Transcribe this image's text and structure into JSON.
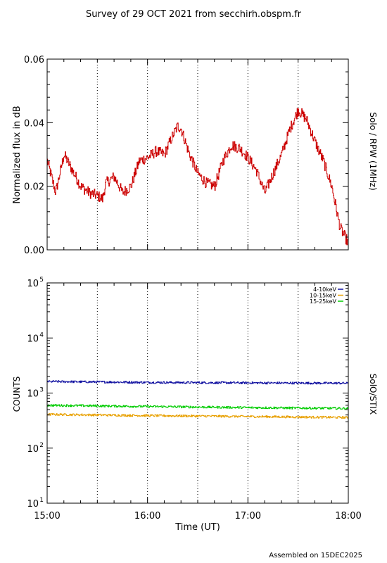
{
  "title": "Survey of 29 OCT 2021 from secchirh.obspm.fr",
  "footer": "Assembled on 15DEC2025",
  "chart_data": [
    {
      "type": "line",
      "ylabel": "Normalized flux in dB",
      "right_label": "Solo / RPW (1MHz)",
      "xlim": [
        "15:00",
        "18:00"
      ],
      "ylim": [
        0.0,
        0.06
      ],
      "yticks": [
        "0.00",
        "0.02",
        "0.04",
        "0.06"
      ],
      "grid_x": [
        "15:30",
        "16:00",
        "16:30",
        "17:00",
        "17:30"
      ],
      "series": [
        {
          "color": "#cc0000",
          "x": [
            "15:00",
            "15:05",
            "15:10",
            "15:15",
            "15:20",
            "15:25",
            "15:30",
            "15:33",
            "15:35",
            "15:40",
            "15:45",
            "15:50",
            "15:55",
            "16:00",
            "16:05",
            "16:10",
            "16:15",
            "16:18",
            "16:20",
            "16:25",
            "16:30",
            "16:35",
            "16:40",
            "16:45",
            "16:50",
            "16:55",
            "17:00",
            "17:05",
            "17:10",
            "17:15",
            "17:20",
            "17:25",
            "17:30",
            "17:35",
            "17:40",
            "17:45",
            "17:50",
            "17:55",
            "18:00"
          ],
          "values": [
            0.028,
            0.018,
            0.03,
            0.025,
            0.02,
            0.018,
            0.017,
            0.016,
            0.021,
            0.023,
            0.018,
            0.02,
            0.028,
            0.029,
            0.031,
            0.03,
            0.036,
            0.039,
            0.038,
            0.03,
            0.024,
            0.021,
            0.02,
            0.028,
            0.033,
            0.032,
            0.029,
            0.025,
            0.018,
            0.024,
            0.03,
            0.038,
            0.044,
            0.041,
            0.034,
            0.028,
            0.02,
            0.007,
            0.002
          ]
        }
      ]
    },
    {
      "type": "line",
      "ylabel": "COUNTS",
      "right_label": "SolO/STIX",
      "xlabel": "Time (UT)",
      "xlim": [
        "15:00",
        "18:00"
      ],
      "xticks": [
        "15:00",
        "16:00",
        "17:00",
        "18:00"
      ],
      "y_scale": "log",
      "ylim": [
        10,
        100000
      ],
      "yticks": [
        {
          "base": "10",
          "exp": "1",
          "value": 10
        },
        {
          "base": "10",
          "exp": "2",
          "value": 100
        },
        {
          "base": "10",
          "exp": "3",
          "value": 1000
        },
        {
          "base": "10",
          "exp": "4",
          "value": 10000
        },
        {
          "base": "10",
          "exp": "5",
          "value": 100000
        }
      ],
      "grid_x": [
        "15:30",
        "16:00",
        "16:30",
        "17:00",
        "17:30"
      ],
      "legend_position": "top-right",
      "series": [
        {
          "name": "4-10keV",
          "color": "#1010a0",
          "x": [
            "15:00",
            "16:00",
            "17:00",
            "18:00"
          ],
          "values": [
            1620,
            1560,
            1530,
            1510
          ]
        },
        {
          "name": "10-15keV",
          "color": "#e8a000",
          "x": [
            "15:00",
            "16:00",
            "17:00",
            "18:00"
          ],
          "values": [
            410,
            390,
            375,
            360
          ]
        },
        {
          "name": "15-25keV",
          "color": "#00cc00",
          "x": [
            "15:00",
            "16:00",
            "17:00",
            "18:00"
          ],
          "values": [
            600,
            570,
            545,
            525
          ]
        }
      ]
    }
  ]
}
